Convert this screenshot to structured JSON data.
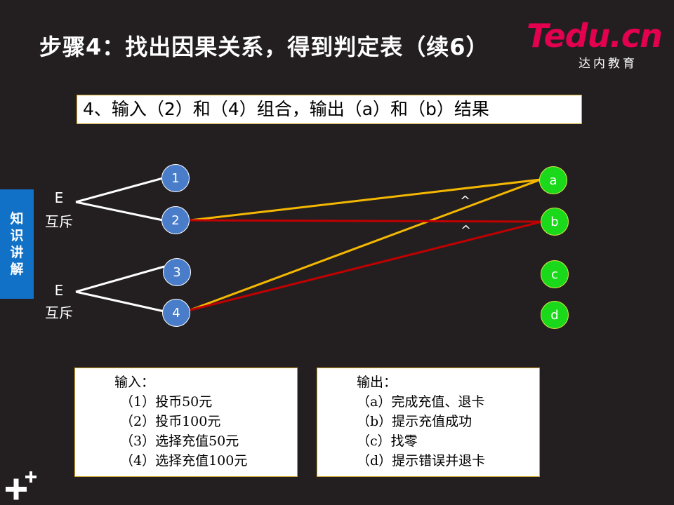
{
  "title": "步骤4：找出因果关系，得到判定表（续6）",
  "logo": {
    "brand": "Tedu.cn",
    "sub": "达内教育"
  },
  "subtitle": "4、输入（2）和（4）组合，输出（a）和（b）结果",
  "side_tab": {
    "chars": [
      "知",
      "识",
      "讲",
      "解"
    ]
  },
  "groups": [
    {
      "constraint": "E",
      "label": "互斥"
    },
    {
      "constraint": "E",
      "label": "互斥"
    }
  ],
  "inputs": [
    {
      "id": "1"
    },
    {
      "id": "2"
    },
    {
      "id": "3"
    },
    {
      "id": "4"
    }
  ],
  "outputs": [
    {
      "id": "a"
    },
    {
      "id": "b"
    },
    {
      "id": "c"
    },
    {
      "id": "d"
    }
  ],
  "connections": [
    {
      "from": "2",
      "to": "a",
      "color": "#f5b800"
    },
    {
      "from": "4",
      "to": "a",
      "color": "#f5b800"
    },
    {
      "from": "2",
      "to": "b",
      "color": "#c00000"
    },
    {
      "from": "4",
      "to": "b",
      "color": "#c00000"
    }
  ],
  "and_marks": [
    "^",
    "^"
  ],
  "input_box": {
    "title": "输入：",
    "items": [
      "（1）投币50元",
      "（2）投币100元",
      "（3）选择充值50元",
      "（4）选择充值100元"
    ]
  },
  "output_box": {
    "title": "输出：",
    "items": [
      "（a）完成充值、退卡",
      "（b）提示充值成功",
      "（c）找零",
      "（d）提示错误并退卡"
    ]
  },
  "colors": {
    "background": "#231f20",
    "accent_blue": "#1171c7",
    "output_green": "#1ad81a",
    "and_yellow": "#f5b800",
    "and_red": "#c00000"
  }
}
